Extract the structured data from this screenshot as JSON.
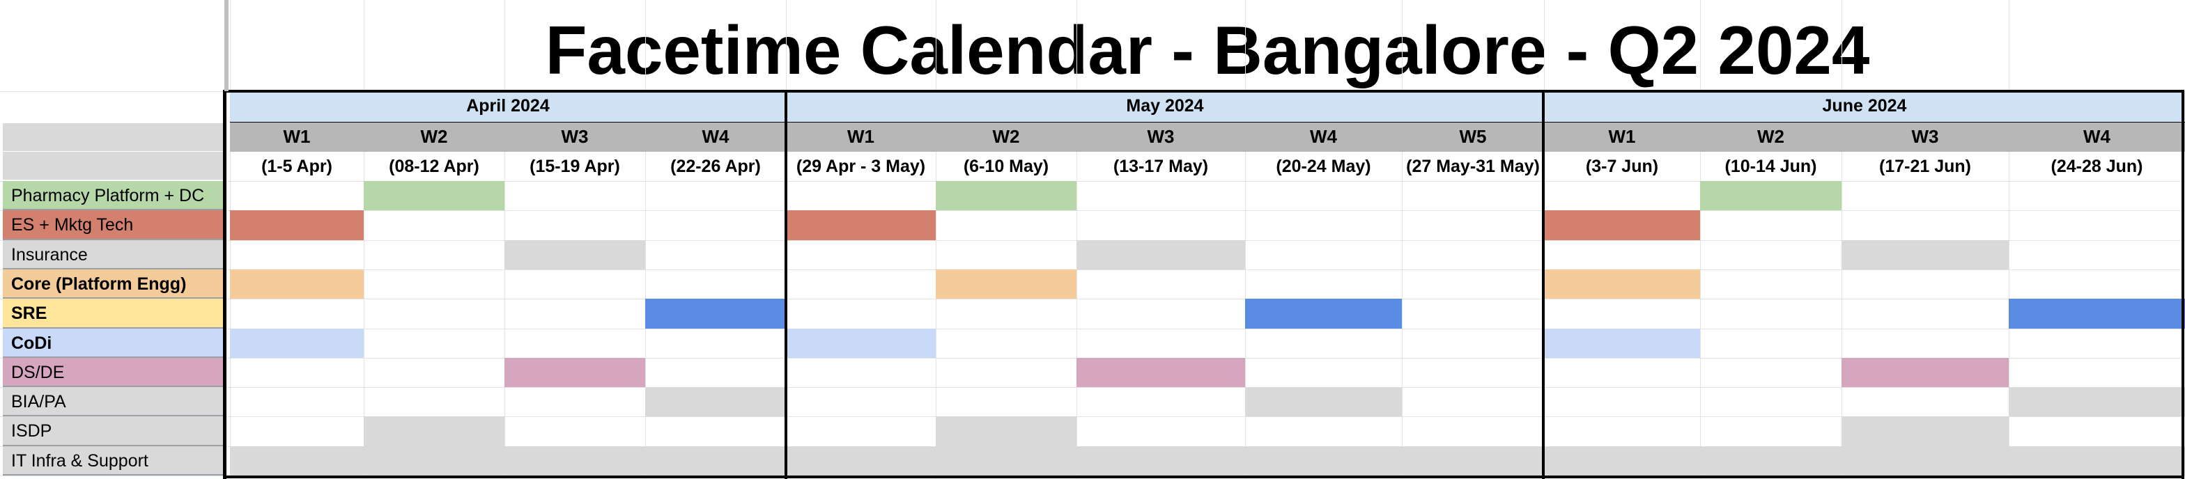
{
  "title": "Facetime Calendar - Bangalore - Q2 2024",
  "colors": {
    "month_header": "#cfe2f3",
    "week_header": "#b7b7b7",
    "row_label_empty": "#d9d9d9",
    "green": "#b6d7a8",
    "red": "#d4806e",
    "grey": "#d9d9d9",
    "orange": "#f3cc99",
    "blue": "#5b8ce3",
    "light_blue": "#c9daf8",
    "pink": "#d5a6bd",
    "yellow": "#ffe599"
  },
  "months": [
    {
      "label": "April 2024"
    },
    {
      "label": "May 2024"
    },
    {
      "label": "June 2024"
    }
  ],
  "weeks": [
    {
      "label": "W1",
      "range": "(1-5 Apr)"
    },
    {
      "label": "W2",
      "range": "(08-12 Apr)"
    },
    {
      "label": "W3",
      "range": "(15-19 Apr)"
    },
    {
      "label": "W4",
      "range": "(22-26 Apr)"
    },
    {
      "label": "W1",
      "range": "(29 Apr - 3 May)"
    },
    {
      "label": "W2",
      "range": "(6-10 May)"
    },
    {
      "label": "W3",
      "range": "(13-17 May)"
    },
    {
      "label": "W4",
      "range": "(20-24 May)"
    },
    {
      "label": "W5",
      "range": "(27 May-31 May)"
    },
    {
      "label": "W1",
      "range": "(3-7 Jun)"
    },
    {
      "label": "W2",
      "range": "(10-14 Jun)"
    },
    {
      "label": "W3",
      "range": "(17-21 Jun)"
    },
    {
      "label": "W4",
      "range": "(24-28 Jun)"
    }
  ],
  "teams": [
    {
      "label": "Pharmacy Platform + DC",
      "color": "#b6d7a8",
      "bold": false,
      "weeks": [
        1,
        5,
        10
      ]
    },
    {
      "label": "ES + Mktg Tech",
      "color": "#d4806e",
      "bold": false,
      "weeks": [
        0,
        4,
        9
      ]
    },
    {
      "label": "Insurance",
      "color": "#d9d9d9",
      "bold": false,
      "weeks": [
        2,
        6,
        11
      ]
    },
    {
      "label": "Core (Platform Engg)",
      "color": "#f3cc99",
      "bold": true,
      "weeks": [
        0,
        5,
        9
      ]
    },
    {
      "label": "SRE",
      "color": "#5b8ce3",
      "label_bg": "#ffe599",
      "bold": true,
      "weeks": [
        3,
        7,
        12
      ]
    },
    {
      "label": "CoDi",
      "color": "#c9daf8",
      "bold": true,
      "weeks": [
        0,
        4,
        9
      ]
    },
    {
      "label": "DS/DE",
      "color": "#d5a6bd",
      "bold": false,
      "weeks": [
        2,
        6,
        11
      ]
    },
    {
      "label": "BIA/PA",
      "color": "#d9d9d9",
      "bold": false,
      "weeks": [
        3,
        7,
        12
      ]
    },
    {
      "label": "ISDP",
      "color": "#d9d9d9",
      "bold": false,
      "weeks": [
        1,
        5,
        11
      ]
    },
    {
      "label": "IT Infra & Support",
      "color": "#d9d9d9",
      "bold": false,
      "weeks": [
        0,
        1,
        2,
        3,
        4,
        5,
        6,
        7,
        8,
        9,
        10,
        11,
        12
      ]
    }
  ]
}
